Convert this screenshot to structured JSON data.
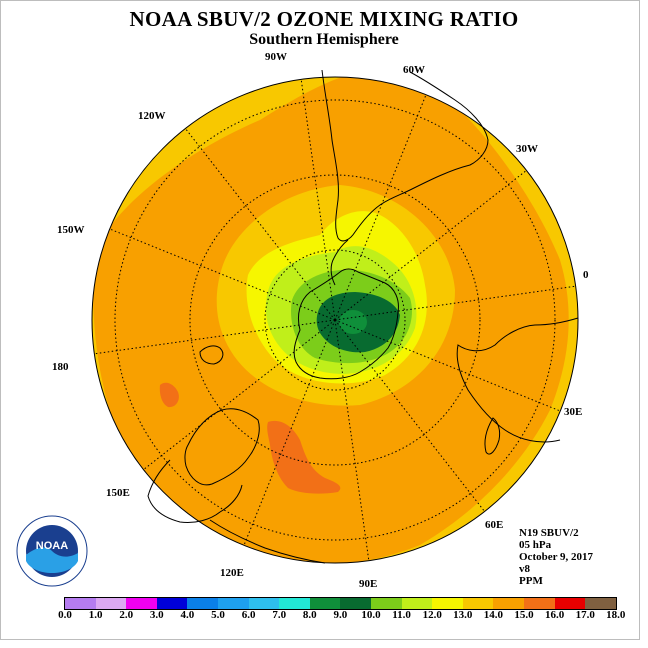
{
  "title": "NOAA SBUV/2 OZONE MIXING RATIO",
  "subtitle": "Southern Hemisphere",
  "longitude_labels": [
    "0",
    "30E",
    "60E",
    "90E",
    "120E",
    "150E",
    "180",
    "150W",
    "120W",
    "90W",
    "60W",
    "30W"
  ],
  "info": {
    "instrument": "N19 SBUV/2",
    "level": "05 hPa",
    "date": "October 9, 2017",
    "version": "v8",
    "units": "PPM"
  },
  "colorbar": {
    "colors": [
      "#b57cf0",
      "#dca8f2",
      "#f000f0",
      "#0000d8",
      "#0a7fe8",
      "#1ea0ef",
      "#2ebfee",
      "#22e8d6",
      "#0f8f3a",
      "#086b30",
      "#7ccd1a",
      "#c0ef1a",
      "#f6f600",
      "#f8c800",
      "#f8a000",
      "#f27017",
      "#e80000",
      "#806040"
    ],
    "ticks": [
      "0.0",
      "1.0",
      "2.0",
      "3.0",
      "4.0",
      "5.0",
      "6.0",
      "7.0",
      "8.0",
      "9.0",
      "10.0",
      "11.0",
      "12.0",
      "13.0",
      "14.0",
      "15.0",
      "16.0",
      "17.0",
      "18.0"
    ]
  },
  "logo": {
    "text": "NOAA",
    "ring_text": "NATIONAL OCEANIC AND ATMOSPHERIC ADMINISTRATION · U.S. DEPARTMENT OF COMMERCE"
  }
}
